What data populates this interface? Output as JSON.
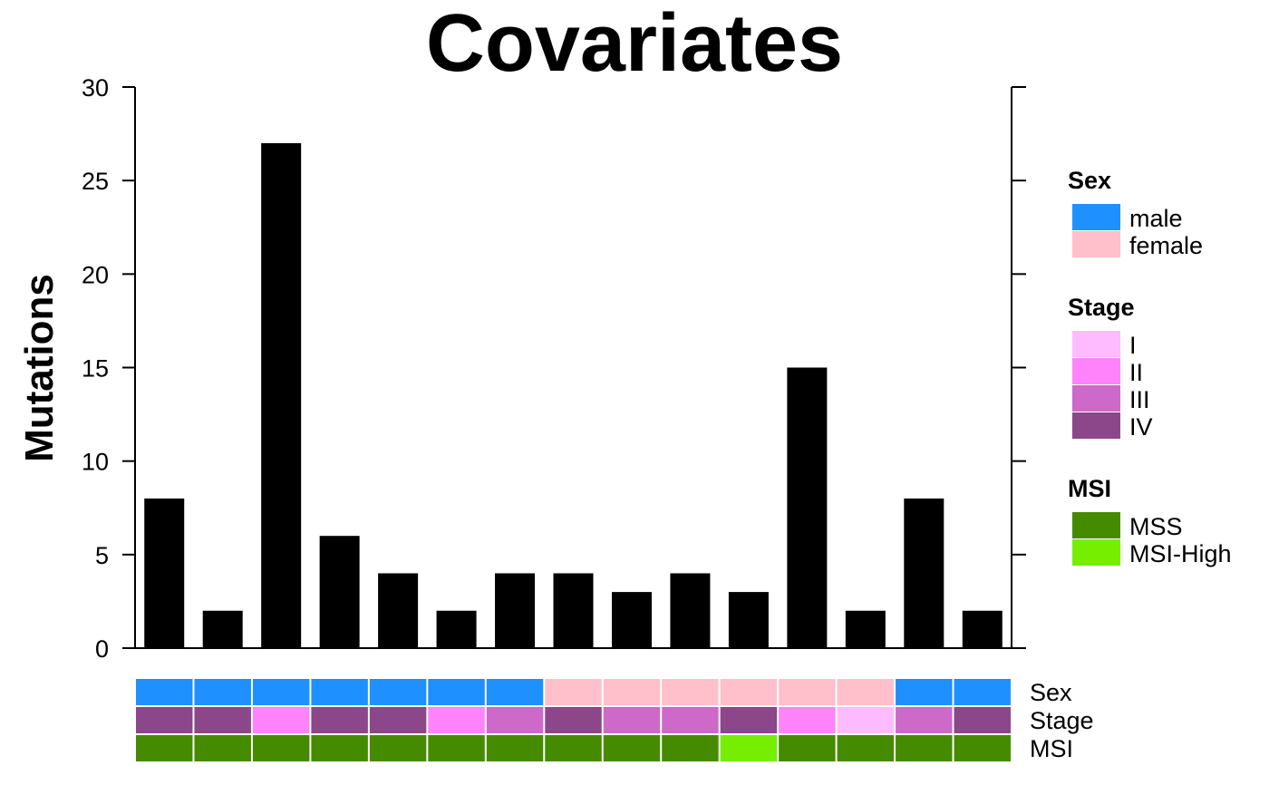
{
  "chart_data": {
    "type": "bar",
    "title": "Covariates",
    "ylabel": "Mutations",
    "ylim": [
      0,
      30
    ],
    "yticks": [
      0,
      5,
      10,
      15,
      20,
      25,
      30
    ],
    "values": [
      8,
      2,
      27,
      6,
      4,
      2,
      4,
      4,
      3,
      4,
      3,
      15,
      2,
      8,
      2
    ],
    "bar_color": "#000000",
    "covariate_tracks": [
      {
        "name": "Sex",
        "values": [
          "male",
          "male",
          "male",
          "male",
          "male",
          "male",
          "male",
          "female",
          "female",
          "female",
          "female",
          "female",
          "female",
          "male",
          "male"
        ]
      },
      {
        "name": "Stage",
        "values": [
          "IV",
          "IV",
          "II",
          "IV",
          "IV",
          "II",
          "III",
          "IV",
          "III",
          "III",
          "IV",
          "II",
          "I",
          "III",
          "IV"
        ]
      },
      {
        "name": "MSI",
        "values": [
          "MSS",
          "MSS",
          "MSS",
          "MSS",
          "MSS",
          "MSS",
          "MSS",
          "MSS",
          "MSS",
          "MSS",
          "MSI-High",
          "MSS",
          "MSS",
          "MSS",
          "MSS"
        ]
      }
    ],
    "legend": [
      {
        "title": "Sex",
        "items": [
          {
            "label": "male",
            "color": "#1E90FF"
          },
          {
            "label": "female",
            "color": "#FFC0CB"
          }
        ]
      },
      {
        "title": "Stage",
        "items": [
          {
            "label": "I",
            "color": "#FFBBFF"
          },
          {
            "label": "II",
            "color": "#FF83FA"
          },
          {
            "label": "III",
            "color": "#CD69C9"
          },
          {
            "label": "IV",
            "color": "#8B4789"
          }
        ]
      },
      {
        "title": "MSI",
        "items": [
          {
            "label": "MSS",
            "color": "#458B00"
          },
          {
            "label": "MSI-High",
            "color": "#76EE00"
          }
        ]
      }
    ],
    "legend_placement": "right"
  }
}
